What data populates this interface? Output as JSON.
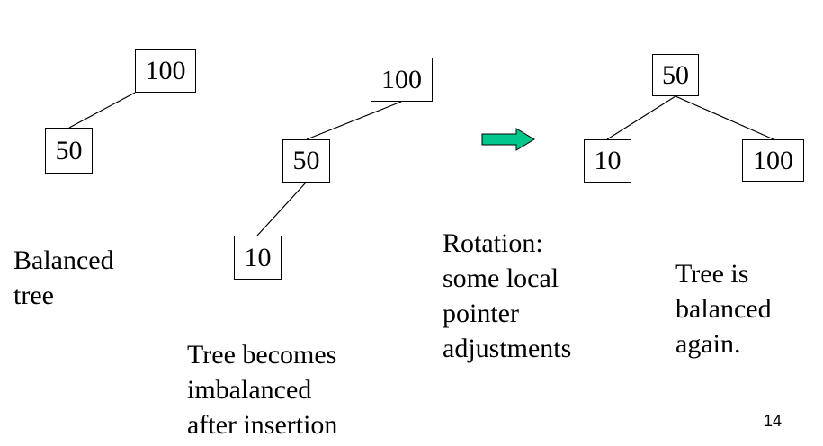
{
  "trees": {
    "balanced": {
      "root": "100",
      "left": "50"
    },
    "imbalanced": {
      "root": "100",
      "child": "50",
      "grandchild": "10"
    },
    "rotated": {
      "root": "50",
      "left": "10",
      "right": "100"
    }
  },
  "captions": {
    "balanced": [
      "Balanced",
      "tree"
    ],
    "imbalanced": [
      "Tree becomes",
      "imbalanced",
      "after insertion"
    ],
    "rotation": [
      "Rotation:",
      "some local",
      "pointer",
      "adjustments"
    ],
    "rebalanced": [
      "Tree is",
      "balanced",
      "again."
    ]
  },
  "arrow_color": "#00c78c",
  "page_number": "14"
}
